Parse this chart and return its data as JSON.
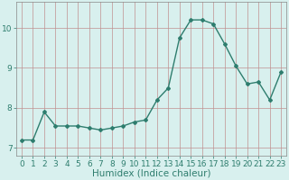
{
  "x": [
    0,
    1,
    2,
    3,
    4,
    5,
    6,
    7,
    8,
    9,
    10,
    11,
    12,
    13,
    14,
    15,
    16,
    17,
    18,
    19,
    20,
    21,
    22,
    23
  ],
  "y": [
    7.2,
    7.2,
    7.9,
    7.55,
    7.55,
    7.55,
    7.5,
    7.45,
    7.5,
    7.55,
    7.65,
    7.7,
    8.2,
    8.5,
    9.75,
    10.2,
    10.2,
    10.1,
    9.6,
    9.05,
    8.6,
    8.65,
    8.2,
    8.9
  ],
  "line_color": "#2e7d6e",
  "bg_color": "#d8f0ee",
  "grid_color": "#c09090",
  "tick_color": "#2e7d6e",
  "xlabel": "Humidex (Indice chaleur)",
  "ylim": [
    6.8,
    10.65
  ],
  "xlim": [
    -0.5,
    23.5
  ],
  "yticks": [
    7,
    8,
    9,
    10
  ],
  "xticks": [
    0,
    1,
    2,
    3,
    4,
    5,
    6,
    7,
    8,
    9,
    10,
    11,
    12,
    13,
    14,
    15,
    16,
    17,
    18,
    19,
    20,
    21,
    22,
    23
  ],
  "marker": "D",
  "marker_size": 2.0,
  "line_width": 1.0,
  "xlabel_fontsize": 7.5,
  "tick_fontsize": 6.5
}
